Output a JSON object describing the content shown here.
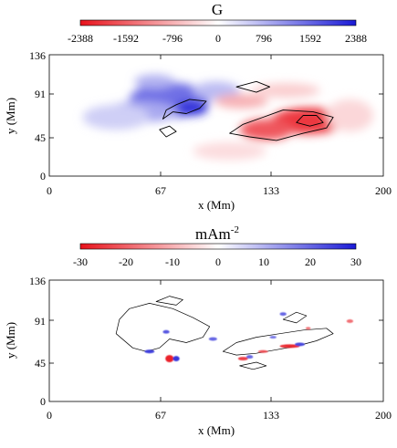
{
  "chart_data": [
    {
      "type": "heatmap",
      "title": "G",
      "colorbar": {
        "ticks": [
          "-2388",
          "-1592",
          "-796",
          "0",
          "796",
          "1592",
          "2388"
        ],
        "range": [
          -2388,
          2388
        ],
        "colors": {
          "negative": "#e8121b",
          "zero": "#ffffff",
          "positive": "#1a1ad6"
        }
      },
      "xlabel": "x (Mm)",
      "ylabel": "y (Mm)",
      "xlim": [
        0,
        200
      ],
      "ylim": [
        0,
        136
      ],
      "xticks": [
        "0",
        "67",
        "133",
        "200"
      ],
      "yticks": [
        "0",
        "45",
        "91",
        "136"
      ],
      "regions": [
        {
          "x": 72,
          "y": 85,
          "rx": 24,
          "ry": 20,
          "value": 1500
        },
        {
          "x": 85,
          "y": 76,
          "rx": 10,
          "ry": 8,
          "value": 2200
        },
        {
          "x": 55,
          "y": 72,
          "rx": 22,
          "ry": 12,
          "value": 900
        },
        {
          "x": 40,
          "y": 66,
          "rx": 20,
          "ry": 14,
          "value": 500
        },
        {
          "x": 100,
          "y": 96,
          "rx": 14,
          "ry": 10,
          "value": 700
        },
        {
          "x": 63,
          "y": 106,
          "rx": 12,
          "ry": 8,
          "value": 800
        },
        {
          "x": 155,
          "y": 62,
          "rx": 22,
          "ry": 15,
          "value": -2000
        },
        {
          "x": 130,
          "y": 52,
          "rx": 16,
          "ry": 12,
          "value": -1700
        },
        {
          "x": 115,
          "y": 84,
          "rx": 16,
          "ry": 8,
          "value": -800
        },
        {
          "x": 142,
          "y": 96,
          "rx": 20,
          "ry": 8,
          "value": -500
        },
        {
          "x": 108,
          "y": 28,
          "rx": 22,
          "ry": 10,
          "value": -350
        },
        {
          "x": 180,
          "y": 68,
          "rx": 14,
          "ry": 18,
          "value": -400
        }
      ],
      "contours": [
        [
          [
            68,
            64
          ],
          [
            74,
            72
          ],
          [
            82,
            70
          ],
          [
            90,
            76
          ],
          [
            94,
            84
          ],
          [
            84,
            86
          ],
          [
            76,
            80
          ],
          [
            70,
            74
          ]
        ],
        [
          [
            108,
            48
          ],
          [
            120,
            44
          ],
          [
            136,
            40
          ],
          [
            152,
            48
          ],
          [
            166,
            54
          ],
          [
            170,
            66
          ],
          [
            158,
            72
          ],
          [
            140,
            74
          ],
          [
            128,
            66
          ],
          [
            116,
            58
          ]
        ],
        [
          [
            148,
            60
          ],
          [
            156,
            56
          ],
          [
            164,
            60
          ],
          [
            160,
            68
          ],
          [
            152,
            68
          ]
        ],
        [
          [
            112,
            100
          ],
          [
            124,
            106
          ],
          [
            132,
            100
          ],
          [
            124,
            94
          ]
        ],
        [
          [
            70,
            44
          ],
          [
            76,
            50
          ],
          [
            72,
            56
          ],
          [
            66,
            52
          ]
        ]
      ]
    },
    {
      "type": "heatmap",
      "title": "mAm",
      "title_superscript": "-2",
      "colorbar": {
        "ticks": [
          "-30",
          "-20",
          "-10",
          "0",
          "10",
          "20",
          "30"
        ],
        "range": [
          -30,
          30
        ],
        "colors": {
          "negative": "#e8121b",
          "zero": "#ffffff",
          "positive": "#1a1ad6"
        }
      },
      "xlabel": "x (Mm)",
      "ylabel": "y (Mm)",
      "xlim": [
        0,
        200
      ],
      "ylim": [
        0,
        136
      ],
      "xticks": [
        "0",
        "67",
        "133",
        "200"
      ],
      "yticks": [
        "0",
        "45",
        "91",
        "136"
      ],
      "regions": [
        {
          "x": 60,
          "y": 56,
          "rx": 3,
          "ry": 2,
          "value": 25
        },
        {
          "x": 72,
          "y": 48,
          "rx": 2.5,
          "ry": 4,
          "value": -28
        },
        {
          "x": 76,
          "y": 48,
          "rx": 2,
          "ry": 3,
          "value": 26
        },
        {
          "x": 70,
          "y": 78,
          "rx": 2,
          "ry": 2,
          "value": 22
        },
        {
          "x": 98,
          "y": 70,
          "rx": 2.5,
          "ry": 2,
          "value": 20
        },
        {
          "x": 116,
          "y": 48,
          "rx": 3,
          "ry": 2,
          "value": -24
        },
        {
          "x": 120,
          "y": 50,
          "rx": 2,
          "ry": 2,
          "value": 20
        },
        {
          "x": 128,
          "y": 56,
          "rx": 3,
          "ry": 1.5,
          "value": -22
        },
        {
          "x": 144,
          "y": 62,
          "rx": 6,
          "ry": 2,
          "value": -27
        },
        {
          "x": 150,
          "y": 64,
          "rx": 3,
          "ry": 2,
          "value": 24
        },
        {
          "x": 140,
          "y": 98,
          "rx": 2,
          "ry": 2,
          "value": 20
        },
        {
          "x": 155,
          "y": 82,
          "rx": 1.5,
          "ry": 1.5,
          "value": -18
        },
        {
          "x": 180,
          "y": 90,
          "rx": 2,
          "ry": 2,
          "value": -18
        },
        {
          "x": 134,
          "y": 72,
          "rx": 2,
          "ry": 1.5,
          "value": 18
        }
      ],
      "contours": [
        [
          [
            50,
            60
          ],
          [
            58,
            56
          ],
          [
            66,
            60
          ],
          [
            72,
            70
          ],
          [
            82,
            66
          ],
          [
            92,
            72
          ],
          [
            96,
            84
          ],
          [
            86,
            94
          ],
          [
            74,
            104
          ],
          [
            60,
            110
          ],
          [
            48,
            104
          ],
          [
            42,
            92
          ],
          [
            40,
            76
          ]
        ],
        [
          [
            64,
            112
          ],
          [
            72,
            118
          ],
          [
            80,
            114
          ],
          [
            76,
            108
          ]
        ],
        [
          [
            104,
            56
          ],
          [
            112,
            52
          ],
          [
            124,
            54
          ],
          [
            136,
            58
          ],
          [
            148,
            62
          ],
          [
            160,
            68
          ],
          [
            170,
            76
          ],
          [
            166,
            82
          ],
          [
            152,
            80
          ],
          [
            138,
            76
          ],
          [
            124,
            72
          ],
          [
            112,
            66
          ]
        ],
        [
          [
            140,
            92
          ],
          [
            148,
            100
          ],
          [
            154,
            96
          ],
          [
            148,
            88
          ]
        ],
        [
          [
            114,
            40
          ],
          [
            124,
            44
          ],
          [
            130,
            40
          ],
          [
            122,
            36
          ]
        ]
      ]
    }
  ]
}
